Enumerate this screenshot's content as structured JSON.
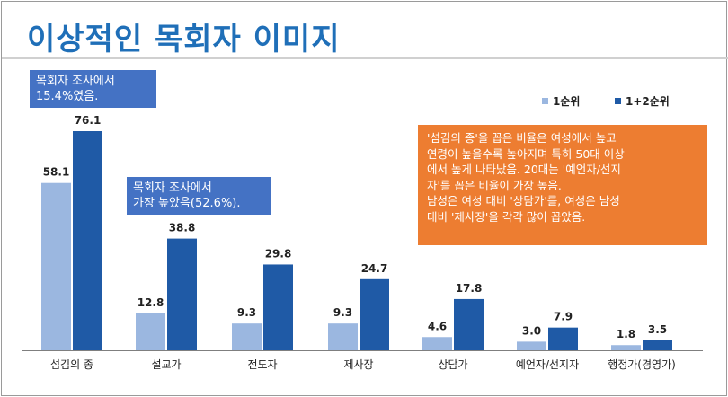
{
  "title": "이상적인 목회자 이미지",
  "callouts": {
    "pastor_survey_1": [
      "목회자 조사에서",
      "15.4%였음."
    ],
    "pastor_survey_2": [
      "목회자 조사에서",
      "가장 높았음(52.6%)."
    ],
    "analysis": [
      "'섬김의 종'을 꼽은 비율은 여성에서 높고",
      "연령이 높을수록 높아지며 특히 50대 이상",
      "에서 높게 나타났음. 20대는 '예언자/선지",
      "자'를 꼽은 비율이 가장 높음.",
      "남성은 여성 대비 '상담가'를, 여성은 남성",
      "대비 '제사장'을 각각 많이 꼽았음."
    ]
  },
  "colors": {
    "first": "#9bb7e0",
    "combined": "#1f5aa6",
    "title": "#1f6fb8"
  },
  "chart_data": {
    "type": "bar",
    "title": "이상적인 목회자 이미지",
    "categories": [
      "섬김의 종",
      "설교가",
      "전도자",
      "제사장",
      "상담가",
      "예언자/선지자",
      "행정가(경영가)"
    ],
    "series": [
      {
        "name": "1순위",
        "values": [
          58.1,
          12.8,
          9.3,
          9.3,
          4.6,
          3.0,
          1.8
        ],
        "labels": [
          "58.1",
          "12.8",
          "9.3",
          "9.3",
          "4.6",
          "3.0",
          "1.8"
        ]
      },
      {
        "name": "1+2순위",
        "values": [
          76.1,
          38.8,
          29.8,
          24.7,
          17.8,
          7.9,
          3.5
        ],
        "labels": [
          "76.1",
          "38.8",
          "29.8",
          "24.7",
          "17.8",
          "7.9",
          "3.5"
        ]
      }
    ],
    "ylim": [
      0,
      76.1
    ],
    "legend": "top-right",
    "xlabel": "",
    "ylabel": ""
  }
}
